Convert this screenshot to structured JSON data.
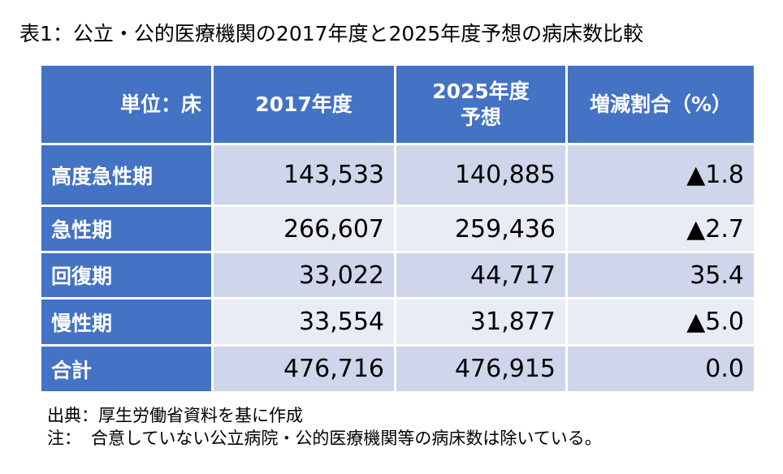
{
  "title": "表1：公立・公的医療機関の2017年度と2025年度予想の病床数比較",
  "table": {
    "headers": {
      "unit": "単位：床",
      "col_2017": "2017年度",
      "col_2025_line1": "2025年度",
      "col_2025_line2": "予想",
      "col_change": "増減割合（%）"
    },
    "rows": [
      {
        "label": "高度急性期",
        "v2017": "143,533",
        "v2025": "140,885",
        "change": "▲1.8"
      },
      {
        "label": "急性期",
        "v2017": "266,607",
        "v2025": "259,436",
        "change": "▲2.7"
      },
      {
        "label": "回復期",
        "v2017": "33,022",
        "v2025": "44,717",
        "change": "35.4"
      },
      {
        "label": "慢性期",
        "v2017": "33,554",
        "v2025": "31,877",
        "change": "▲5.0"
      },
      {
        "label": "合計",
        "v2017": "476,716",
        "v2025": "476,915",
        "change": "0.0"
      }
    ]
  },
  "notes": {
    "source": "出典：厚生労働省資料を基に作成",
    "note_label": "注：",
    "note_text": "合意していない公立病院・公的医療機関等の病床数は除いている。"
  },
  "colors": {
    "header_blue": "#4472c4",
    "band_dark": "#cfd5ea",
    "band_light": "#e9ebf5"
  }
}
